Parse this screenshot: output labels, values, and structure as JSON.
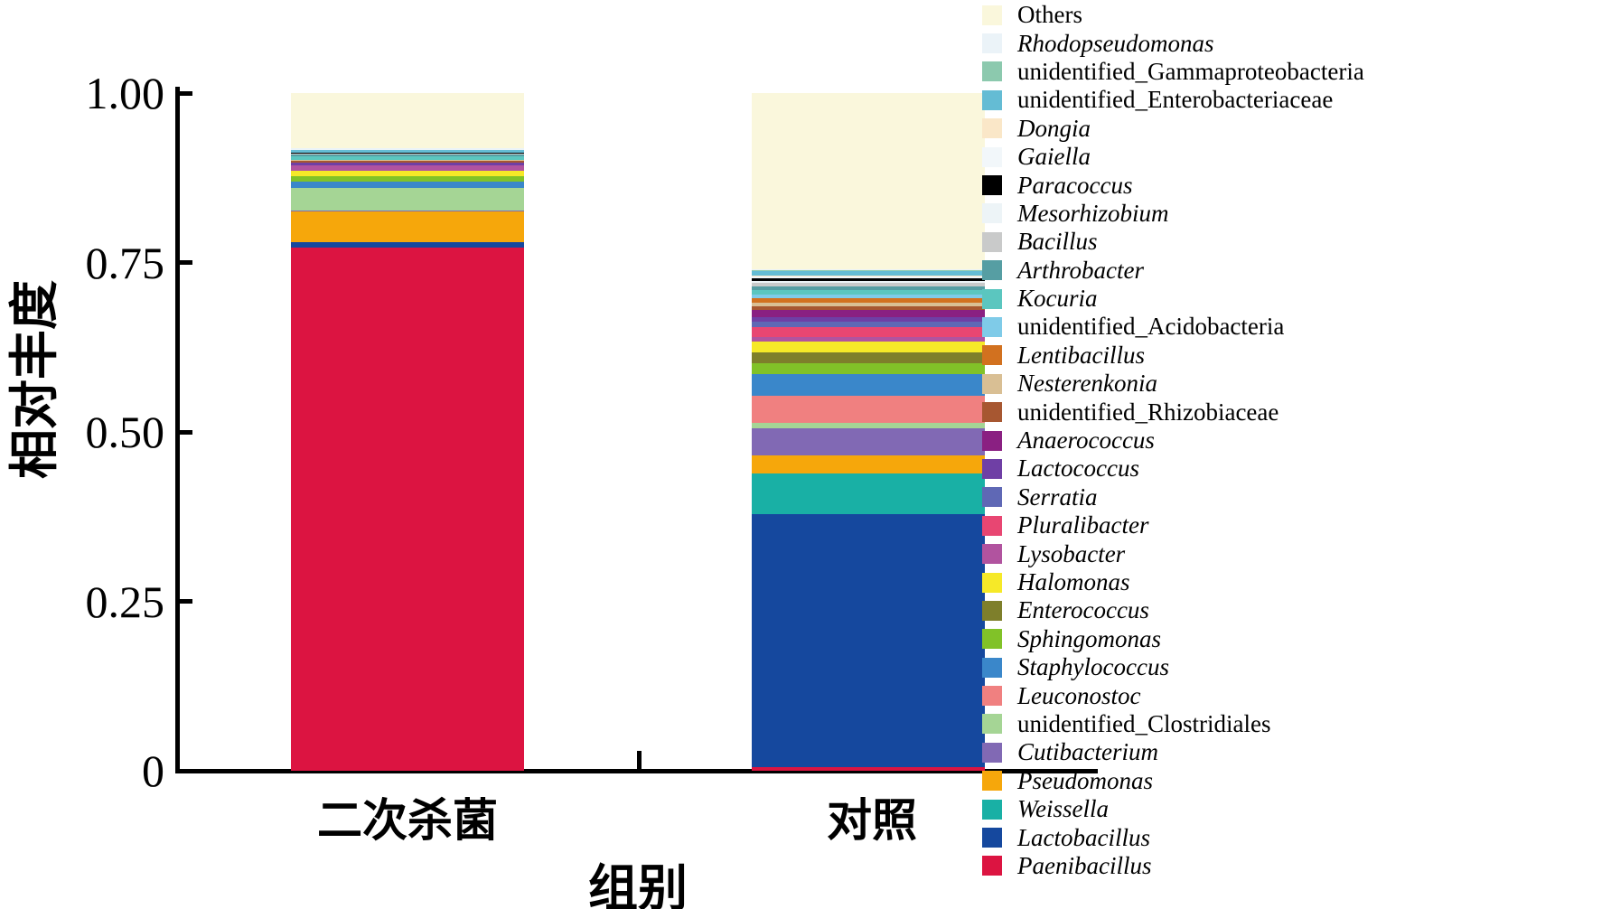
{
  "chart_data": {
    "type": "bar",
    "stacked": true,
    "orientation": "vertical",
    "title": "",
    "xlabel": "组别",
    "ylabel": "相对丰度",
    "categories": [
      "二次杀菌",
      "对照"
    ],
    "ylim": [
      0,
      1
    ],
    "y_ticks": [
      1.0,
      0.75,
      0.5,
      0.25,
      0
    ],
    "y_tick_labels": [
      "1.00",
      "0.75",
      "0.50",
      "0.25",
      "0"
    ],
    "grid": false,
    "legend_position": "right",
    "axis_color": "#000000",
    "background_color": "#FFFFFF",
    "series": [
      {
        "name": "Others",
        "color": "#FAF7DC",
        "italic": false,
        "values": [
          0.081,
          0.26
        ]
      },
      {
        "name": "Rhodopseudomonas",
        "color": "#EBF3F8",
        "italic": true,
        "values": [
          0.003,
          0.001
        ]
      },
      {
        "name": "unidentified_Gammaproteobacteria",
        "color": "#8CC9AE",
        "italic": false,
        "values": [
          0.0005,
          0.002
        ]
      },
      {
        "name": "unidentified_Enterobacteriaceae",
        "color": "#64BCD4",
        "italic": false,
        "values": [
          0.003,
          0.006
        ]
      },
      {
        "name": "Dongia",
        "color": "#FAE7C8",
        "italic": true,
        "values": [
          0.0005,
          0.002
        ]
      },
      {
        "name": "Gaiella",
        "color": "#F2F7FA",
        "italic": true,
        "values": [
          0.0005,
          0.002
        ]
      },
      {
        "name": "Paracoccus",
        "color": "#000000",
        "italic": true,
        "values": [
          0.0005,
          0.004
        ]
      },
      {
        "name": "Mesorhizobium",
        "color": "#EDF4F7",
        "italic": true,
        "values": [
          0.0005,
          0.003
        ]
      },
      {
        "name": "Bacillus",
        "color": "#C9CACA",
        "italic": true,
        "values": [
          0.0005,
          0.005
        ]
      },
      {
        "name": "Arthrobacter",
        "color": "#569EA3",
        "italic": true,
        "values": [
          0.003,
          0.006
        ]
      },
      {
        "name": "Kocuria",
        "color": "#5BC6BF",
        "italic": true,
        "values": [
          0.005,
          0.006
        ]
      },
      {
        "name": "unidentified_Acidobacteria",
        "color": "#7FCBE8",
        "italic": false,
        "values": [
          0.0005,
          0.005
        ]
      },
      {
        "name": "Lentibacillus",
        "color": "#D2711F",
        "italic": true,
        "values": [
          0.0005,
          0.007
        ]
      },
      {
        "name": "Nesterenkonia",
        "color": "#D9BF94",
        "italic": true,
        "values": [
          0.0005,
          0.005
        ]
      },
      {
        "name": "unidentified_Rhizobiaceae",
        "color": "#A75731",
        "italic": false,
        "values": [
          0.003,
          0.006
        ]
      },
      {
        "name": "Anaerococcus",
        "color": "#8A2082",
        "italic": true,
        "values": [
          0.0005,
          0.01
        ]
      },
      {
        "name": "Lactococcus",
        "color": "#6F3FA5",
        "italic": true,
        "values": [
          0.003,
          0.007
        ]
      },
      {
        "name": "Serratia",
        "color": "#5F68B5",
        "italic": true,
        "values": [
          0.0005,
          0.008
        ]
      },
      {
        "name": "Pluralibacter",
        "color": "#E84672",
        "italic": true,
        "values": [
          0.0005,
          0.015
        ]
      },
      {
        "name": "Lysobacter",
        "color": "#B1539F",
        "italic": true,
        "values": [
          0.008,
          0.007
        ]
      },
      {
        "name": "Halomonas",
        "color": "#F6E928",
        "italic": true,
        "values": [
          0.007,
          0.016
        ]
      },
      {
        "name": "Enterococcus",
        "color": "#7E7F2B",
        "italic": true,
        "values": [
          0.0005,
          0.015
        ]
      },
      {
        "name": "Sphingomonas",
        "color": "#81C228",
        "italic": true,
        "values": [
          0.008,
          0.016
        ]
      },
      {
        "name": "Staphylococcus",
        "color": "#3A87CA",
        "italic": true,
        "values": [
          0.009,
          0.033
        ]
      },
      {
        "name": "Leuconostoc",
        "color": "#F08080",
        "italic": true,
        "values": [
          0.0005,
          0.039
        ]
      },
      {
        "name": "unidentified_Clostridiales",
        "color": "#A5D595",
        "italic": false,
        "values": [
          0.033,
          0.008
        ]
      },
      {
        "name": "Cutibacterium",
        "color": "#8169B4",
        "italic": true,
        "values": [
          0.002,
          0.04
        ]
      },
      {
        "name": "Pseudomonas",
        "color": "#F6A70B",
        "italic": true,
        "values": [
          0.045,
          0.027
        ]
      },
      {
        "name": "Weissella",
        "color": "#19B0A5",
        "italic": true,
        "values": [
          0.0005,
          0.06
        ]
      },
      {
        "name": "Lactobacillus",
        "color": "#15489E",
        "italic": true,
        "values": [
          0.008,
          0.374
        ]
      },
      {
        "name": "Paenibacillus",
        "color": "#DC1441",
        "italic": true,
        "values": [
          0.7715,
          0.005
        ]
      }
    ]
  }
}
